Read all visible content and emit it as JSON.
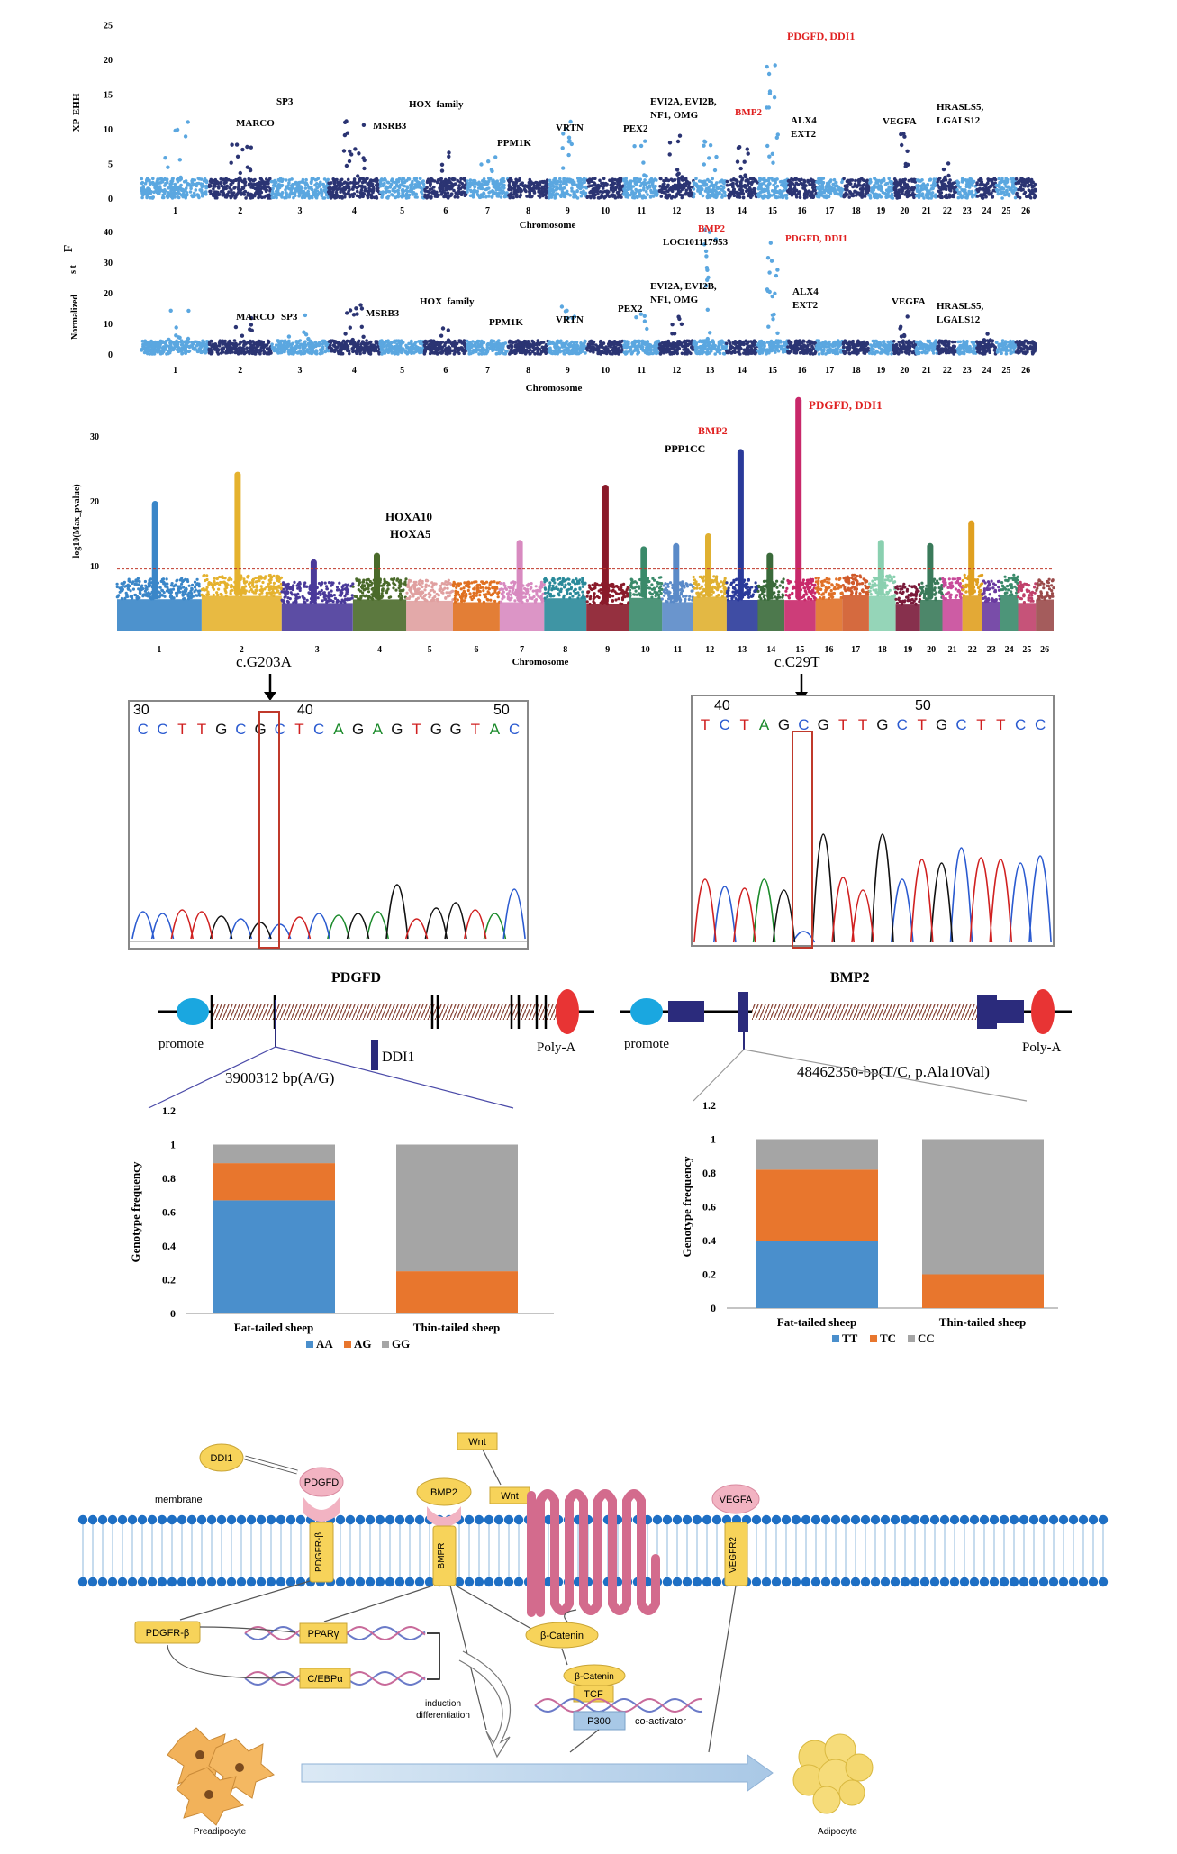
{
  "panel_a": {
    "ylabel": "XP-EHH",
    "xlabel": "Chromosome",
    "yticks": [
      "0",
      "5",
      "10",
      "15",
      "20",
      "25"
    ],
    "chromosomes": [
      "1",
      "2",
      "3",
      "4",
      "5",
      "6",
      "7",
      "8",
      "9",
      "10",
      "11",
      "12",
      "13",
      "14",
      "15",
      "16",
      "17",
      "18",
      "19",
      "20",
      "21",
      "22",
      "23",
      "24",
      "25",
      "26"
    ],
    "genes": [
      {
        "label": "PDGFD, DDI1",
        "color": "#e02020"
      },
      {
        "label": "SP3",
        "color": "#111111"
      },
      {
        "label": "MARCO",
        "color": "#111111"
      },
      {
        "label": "HOX  family",
        "color": "#111111"
      },
      {
        "label": "MSRB3",
        "color": "#111111"
      },
      {
        "label": "PPM1K",
        "color": "#111111"
      },
      {
        "label": "VRTN",
        "color": "#111111"
      },
      {
        "label": "PEX2",
        "color": "#111111"
      },
      {
        "label": "EVI2A, EVI2B,",
        "color": "#111111"
      },
      {
        "label": "NF1, OMG",
        "color": "#111111"
      },
      {
        "label": "BMP2",
        "color": "#e02020"
      },
      {
        "label": "ALX4",
        "color": "#111111"
      },
      {
        "label": "EXT2",
        "color": "#111111"
      },
      {
        "label": "VEGFA",
        "color": "#111111"
      },
      {
        "label": "HRASLS5,",
        "color": "#111111"
      },
      {
        "label": "LGALS12",
        "color": "#111111"
      }
    ]
  },
  "panel_b": {
    "ylabel_main": "F",
    "ylabel_sub": "s t",
    "ylabel_norm": "Normalized",
    "xlabel": "Chromosome",
    "yticks": [
      "0",
      "10",
      "20",
      "30",
      "40"
    ],
    "chromosomes": [
      "1",
      "2",
      "3",
      "4",
      "5",
      "6",
      "7",
      "8",
      "9",
      "10",
      "11",
      "12",
      "13",
      "14",
      "15",
      "16",
      "17",
      "18",
      "19",
      "20",
      "21",
      "22",
      "23",
      "24",
      "25",
      "26"
    ],
    "genes": [
      {
        "label": "BMP2",
        "color": "#e02020"
      },
      {
        "label": "LOC101117953",
        "color": "#111111"
      },
      {
        "label": "PDGFD, DDI1",
        "color": "#e02020"
      },
      {
        "label": "EVI2A, EVI2B,",
        "color": "#111111"
      },
      {
        "label": "NF1, OMG",
        "color": "#111111"
      },
      {
        "label": "ALX4",
        "color": "#111111"
      },
      {
        "label": "EXT2",
        "color": "#111111"
      },
      {
        "label": "VEGFA",
        "color": "#111111"
      },
      {
        "label": "HRASLS5,",
        "color": "#111111"
      },
      {
        "label": "LGALS12",
        "color": "#111111"
      },
      {
        "label": "MARCO",
        "color": "#111111"
      },
      {
        "label": "SP3",
        "color": "#111111"
      },
      {
        "label": "MSRB3",
        "color": "#111111"
      },
      {
        "label": "HOX  family",
        "color": "#111111"
      },
      {
        "label": "PPM1K",
        "color": "#111111"
      },
      {
        "label": "VRTN",
        "color": "#111111"
      },
      {
        "label": "PEX2",
        "color": "#111111"
      }
    ]
  },
  "panel_c": {
    "ylabel": "-log10(Max_pvalue)",
    "xlabel": "Chromosome",
    "yticks": [
      "10",
      "20",
      "30"
    ],
    "chromosomes": [
      "1",
      "2",
      "3",
      "4",
      "5",
      "6",
      "7",
      "8",
      "9",
      "10",
      "11",
      "12",
      "13",
      "14",
      "15",
      "16",
      "17",
      "18",
      "19",
      "20",
      "21",
      "22",
      "23",
      "24",
      "25",
      "26"
    ],
    "genes": [
      {
        "label": "BMP2",
        "color": "#e02020"
      },
      {
        "label": "PPP1CC",
        "color": "#111111"
      },
      {
        "label": "PDGFD, DDI1",
        "color": "#e02020"
      },
      {
        "label": "HOXA10",
        "color": "#111111"
      },
      {
        "label": "HOXA5",
        "color": "#111111"
      }
    ],
    "threshold": 9.5
  },
  "chromatograms": {
    "left": {
      "mutation": "c.G203A",
      "positions": [
        "30",
        "40",
        "50"
      ],
      "sequence": [
        "C",
        "C",
        "T",
        "T",
        "G",
        "C",
        "G",
        "C",
        "T",
        "C",
        "A",
        "G",
        "A",
        "G",
        "T",
        "G",
        "G",
        "T",
        "A",
        "C"
      ]
    },
    "right": {
      "mutation": "c.C29T",
      "positions": [
        "40",
        "50"
      ],
      "sequence": [
        "T",
        "C",
        "T",
        "A",
        "G",
        "C",
        "G",
        "T",
        "T",
        "G",
        "C",
        "T",
        "G",
        "C",
        "T",
        "T",
        "C",
        "C"
      ]
    }
  },
  "gene_structures": {
    "pdgfd": {
      "title": "PDGFD",
      "promoter": "promote",
      "polya": "Poly-A",
      "snp": "3900312 bp(A/G)",
      "ddi1": "DDI1"
    },
    "bmp2": {
      "title": "BMP2",
      "promoter": "promote",
      "polya": "Poly-A",
      "snp": "48462350-bp(T/C, p.Ala10Val)"
    }
  },
  "chart_data": [
    {
      "type": "bar",
      "stacked": true,
      "categories": [
        "Fat-tailed sheep",
        "Thin-tailed sheep"
      ],
      "series": [
        {
          "name": "AA",
          "color": "#4a8fcc",
          "values": [
            0.67,
            0.0
          ]
        },
        {
          "name": "AG",
          "color": "#e8762d",
          "values": [
            0.22,
            0.25
          ]
        },
        {
          "name": "GG",
          "color": "#a5a5a5",
          "values": [
            0.11,
            0.75
          ]
        }
      ],
      "ylabel": "Genotype frequency",
      "ylim": [
        0,
        1.2
      ],
      "yticks": [
        "0",
        "0.2",
        "0.4",
        "0.6",
        "0.8",
        "1",
        "1.2"
      ],
      "legend": "bottom"
    },
    {
      "type": "bar",
      "stacked": true,
      "categories": [
        "Fat-tailed sheep",
        "Thin-tailed sheep"
      ],
      "series": [
        {
          "name": "TT",
          "color": "#4a8fcc",
          "values": [
            0.4,
            0.0
          ]
        },
        {
          "name": "TC",
          "color": "#e8762d",
          "values": [
            0.42,
            0.2
          ]
        },
        {
          "name": "CC",
          "color": "#a5a5a5",
          "values": [
            0.18,
            0.8
          ]
        }
      ],
      "ylabel": "Genotype frequency",
      "ylim": [
        0,
        1.2
      ],
      "yticks": [
        "0",
        "0.2",
        "0.4",
        "0.6",
        "0.8",
        "1",
        "1.2"
      ],
      "legend": "bottom"
    }
  ],
  "pathway": {
    "membrane": "membrane",
    "ddi1": "DDI1",
    "pdgfd": "PDGFD",
    "bmp2": "BMP2",
    "wnt_top": "Wnt",
    "wnt": "Wnt",
    "vegfa": "VEGFA",
    "pdgfr_receptor": "PDGFR-β",
    "bmpr": "BMPR",
    "vegfr2": "VEGFR2",
    "pdgfr_box": "PDGFR-β",
    "ppar": "PPARγ",
    "cebp": "C/EBPα",
    "bcatenin1": "β-Catenin",
    "bcatenin2": "β-Catenin",
    "tcf": "TCF",
    "p300": "P300",
    "coactivator": "co-activator",
    "induction": "induction",
    "differentiation": "differentiation",
    "preadipocyte": "Preadipocyte",
    "adipocyte": "Adipocyte"
  }
}
